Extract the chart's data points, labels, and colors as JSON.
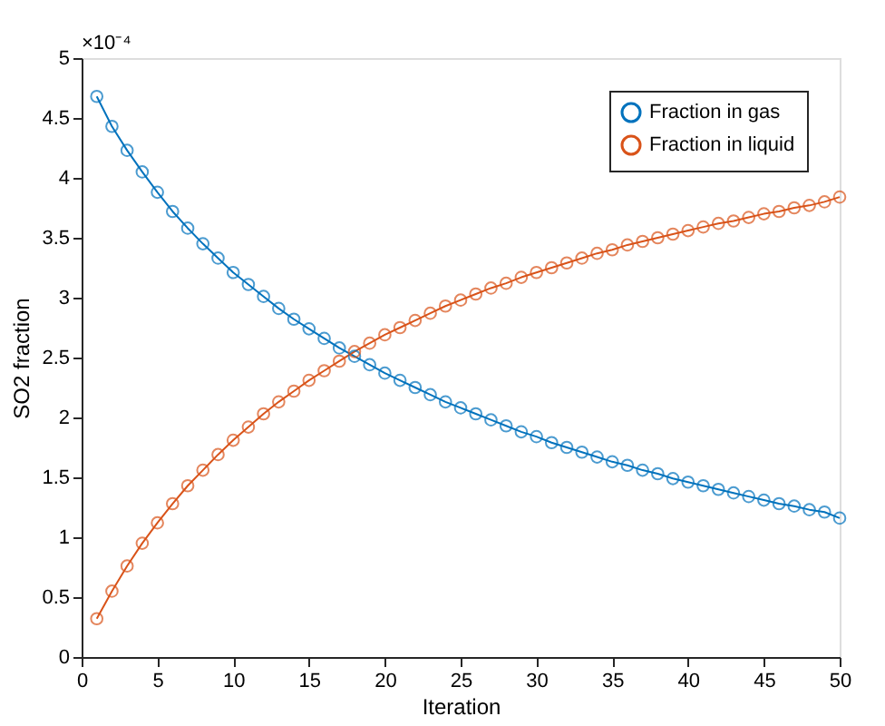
{
  "chart_data": {
    "type": "line",
    "xlabel": "Iteration",
    "ylabel": "SO2 fraction",
    "annotations": [
      "×10⁻⁴"
    ],
    "x": [
      1,
      2,
      3,
      4,
      5,
      6,
      7,
      8,
      9,
      10,
      11,
      12,
      13,
      14,
      15,
      16,
      17,
      18,
      19,
      20,
      21,
      22,
      23,
      24,
      25,
      26,
      27,
      28,
      29,
      30,
      31,
      32,
      33,
      34,
      35,
      36,
      37,
      38,
      39,
      40,
      41,
      42,
      43,
      44,
      45,
      46,
      47,
      48,
      49,
      50
    ],
    "series": [
      {
        "name": "Fraction in gas",
        "color": "#0072bd",
        "values": [
          4.68,
          4.43,
          4.23,
          4.05,
          3.88,
          3.72,
          3.58,
          3.45,
          3.33,
          3.21,
          3.11,
          3.01,
          2.91,
          2.82,
          2.74,
          2.66,
          2.58,
          2.51,
          2.44,
          2.37,
          2.31,
          2.25,
          2.19,
          2.13,
          2.08,
          2.03,
          1.98,
          1.93,
          1.88,
          1.84,
          1.79,
          1.75,
          1.71,
          1.67,
          1.63,
          1.6,
          1.56,
          1.53,
          1.49,
          1.46,
          1.43,
          1.4,
          1.37,
          1.34,
          1.31,
          1.28,
          1.26,
          1.23,
          1.21,
          1.16
        ]
      },
      {
        "name": "Fraction in liquid",
        "color": "#d95319",
        "values": [
          0.32,
          0.55,
          0.76,
          0.95,
          1.12,
          1.28,
          1.43,
          1.56,
          1.69,
          1.81,
          1.92,
          2.03,
          2.13,
          2.22,
          2.31,
          2.39,
          2.47,
          2.55,
          2.62,
          2.69,
          2.75,
          2.81,
          2.87,
          2.93,
          2.98,
          3.03,
          3.08,
          3.12,
          3.17,
          3.21,
          3.25,
          3.29,
          3.33,
          3.37,
          3.4,
          3.44,
          3.47,
          3.5,
          3.53,
          3.56,
          3.59,
          3.62,
          3.64,
          3.67,
          3.7,
          3.72,
          3.75,
          3.77,
          3.8,
          3.84
        ]
      }
    ],
    "xlim": [
      0,
      50
    ],
    "xticks": [
      0,
      5,
      10,
      15,
      20,
      25,
      30,
      35,
      40,
      45,
      50
    ],
    "ylim": [
      0,
      5
    ],
    "yticks": [
      0,
      0.5,
      1,
      1.5,
      2,
      2.5,
      3,
      3.5,
      4,
      4.5,
      5
    ],
    "grid": false,
    "legend": "top right",
    "marker": "circle",
    "line_style": "solid"
  }
}
